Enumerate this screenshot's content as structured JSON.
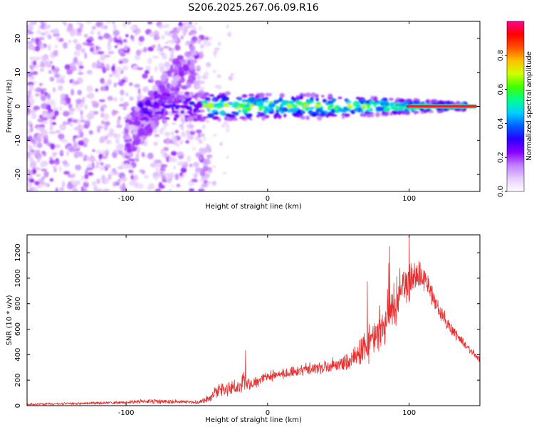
{
  "title": "S206.2025.267.06.09.R16",
  "colors": {
    "snr_line": "#e83030",
    "ridge": "#e0202a",
    "colormap": [
      "#ffffff",
      "#e6ccff",
      "#c080ff",
      "#8a00ff",
      "#2a00ff",
      "#0060ff",
      "#00d0ff",
      "#00ff90",
      "#40ff00",
      "#d0ff00",
      "#ffc000",
      "#ff5000",
      "#ff0000",
      "#ff0090"
    ]
  },
  "chart_data": [
    {
      "type": "heatmap",
      "name": "spectrogram",
      "xlabel": "Height of straight line (km)",
      "ylabel": "Frequency (Hz)",
      "xlim": [
        -170,
        150
      ],
      "ylim": [
        -25,
        25
      ],
      "xticks": [
        -100,
        0,
        100
      ],
      "xtick_labels": [
        "-100",
        "0",
        "100"
      ],
      "yticks": [
        -20,
        -10,
        0,
        10,
        20
      ],
      "ytick_labels": [
        "-20",
        "-10",
        "0",
        "10",
        "20"
      ],
      "colorbar": {
        "label": "Normalized spectral amplitude",
        "range": [
          0,
          1
        ],
        "ticks": [
          0.0,
          0.2,
          0.4,
          0.6,
          0.8
        ],
        "tick_labels": [
          "0.0",
          "0.2",
          "0.4",
          "0.6",
          "0.8"
        ]
      },
      "features": {
        "noise_region_x": [
          -170,
          -40
        ],
        "noise_freq_range": [
          -25,
          25
        ],
        "drift_branch": {
          "x": [
            -100,
            -90,
            -80,
            -70,
            -60,
            -50
          ],
          "freq": [
            -10,
            -5,
            0,
            5,
            10,
            15
          ]
        },
        "carrier_freq": 0,
        "carrier_x_range": [
          -90,
          140
        ],
        "carrier_width_hz": [
          4,
          4,
          3.5,
          3.5,
          3.5,
          3,
          2.5,
          2,
          1.5,
          1
        ],
        "carrier_width_x": [
          -40,
          -20,
          0,
          20,
          40,
          60,
          80,
          100,
          120,
          140
        ]
      }
    },
    {
      "type": "line",
      "name": "snr",
      "xlabel": "Height of straight line (km)",
      "ylabel": "SNR (10 * v/v)",
      "xlim": [
        -170,
        150
      ],
      "ylim": [
        0,
        1340
      ],
      "xticks": [
        -100,
        0,
        100
      ],
      "xtick_labels": [
        "-100",
        "0",
        "100"
      ],
      "yticks": [
        0,
        200,
        400,
        600,
        800,
        1000,
        1200
      ],
      "ytick_labels": [
        "0",
        "200",
        "400",
        "600",
        "800",
        "1000",
        "1200"
      ],
      "series": [
        {
          "name": "SNR",
          "x": [
            -170,
            -150,
            -130,
            -110,
            -100,
            -90,
            -80,
            -70,
            -60,
            -50,
            -45,
            -40,
            -35,
            -30,
            -25,
            -20,
            -17,
            -15,
            -10,
            -5,
            0,
            10,
            20,
            30,
            40,
            50,
            60,
            70,
            80,
            90,
            95,
            100,
            105,
            110,
            115,
            120,
            130,
            140,
            150
          ],
          "mean": [
            12,
            14,
            18,
            22,
            28,
            32,
            35,
            32,
            30,
            28,
            40,
            75,
            115,
            130,
            145,
            140,
            200,
            175,
            170,
            200,
            225,
            250,
            265,
            290,
            300,
            320,
            370,
            470,
            600,
            820,
            910,
            960,
            1010,
            1000,
            900,
            780,
            600,
            470,
            360
          ],
          "spread": [
            10,
            10,
            12,
            14,
            16,
            22,
            24,
            22,
            18,
            16,
            25,
            50,
            70,
            70,
            65,
            60,
            120,
            60,
            55,
            55,
            55,
            55,
            55,
            60,
            65,
            70,
            110,
            170,
            220,
            230,
            230,
            220,
            160,
            120,
            100,
            80,
            55,
            40,
            30
          ],
          "peaks": [
            {
              "x": -15.5,
              "y": 435
            },
            {
              "x": 70.5,
              "y": 975
            },
            {
              "x": 85.5,
              "y": 1120
            },
            {
              "x": 86.2,
              "y": 1250
            },
            {
              "x": 100,
              "y": 1340
            },
            {
              "x": 104,
              "y": 1030
            }
          ]
        }
      ]
    }
  ]
}
